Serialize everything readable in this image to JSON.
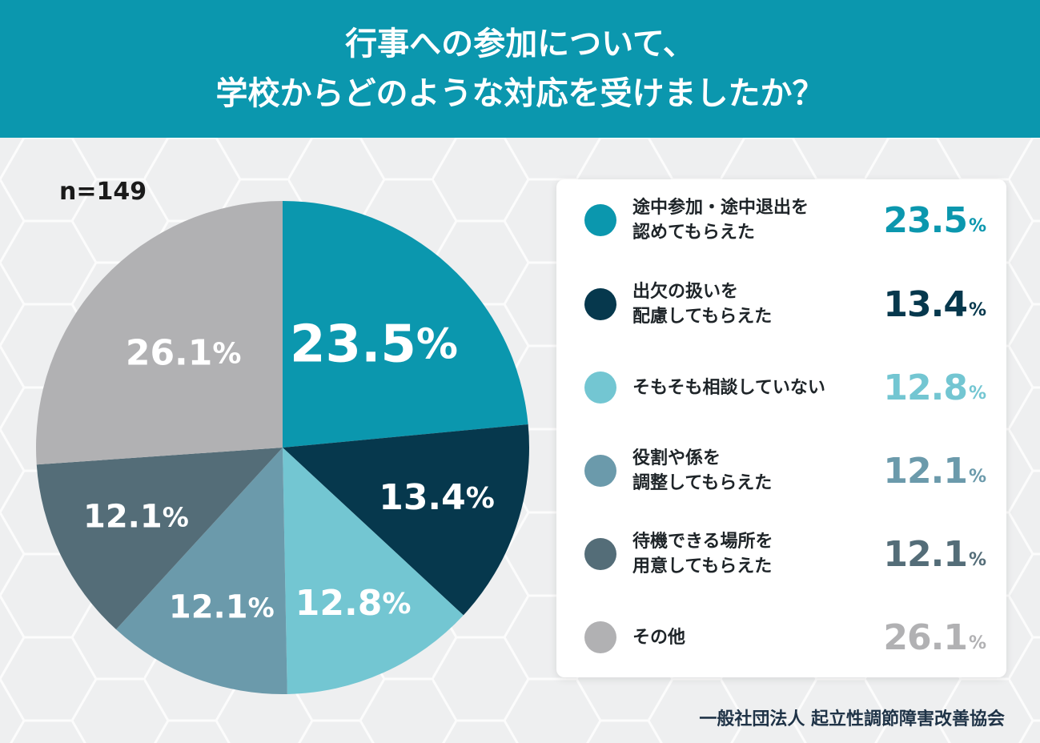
{
  "header": {
    "line1": "行事への参加について、",
    "line2": "学校からどのような対応を受けましたか？"
  },
  "sample_label": "n=149",
  "footer": "一般社団法人 起立性調節障害改善協会",
  "colors": {
    "header_bg": "#0b97ae",
    "text_dark": "#1e2428",
    "footer_text": "#1f3347"
  },
  "chart_data": {
    "type": "pie",
    "start": "12 o'clock, clockwise",
    "unit": "%",
    "slices": [
      {
        "label_lines": [
          "途中参加・途中退出を",
          "認めてもらえた"
        ],
        "value": 23.5,
        "display": "23.5",
        "color": "#0b97ae"
      },
      {
        "label_lines": [
          "出欠の扱いを",
          "配慮してもらえた"
        ],
        "value": 13.4,
        "display": "13.4",
        "color": "#06384d"
      },
      {
        "label_lines": [
          "そもそも相談していない"
        ],
        "value": 12.8,
        "display": "12.8",
        "color": "#73c6d2"
      },
      {
        "label_lines": [
          "役割や係を",
          "調整してもらえた"
        ],
        "value": 12.1,
        "display": "12.1",
        "color": "#6b9aab"
      },
      {
        "label_lines": [
          "待機できる場所を",
          "用意してもらえた"
        ],
        "value": 12.1,
        "display": "12.1",
        "color": "#546d78"
      },
      {
        "label_lines": [
          "その他"
        ],
        "value": 26.1,
        "display": "26.1",
        "color": "#b1b1b3"
      }
    ]
  }
}
